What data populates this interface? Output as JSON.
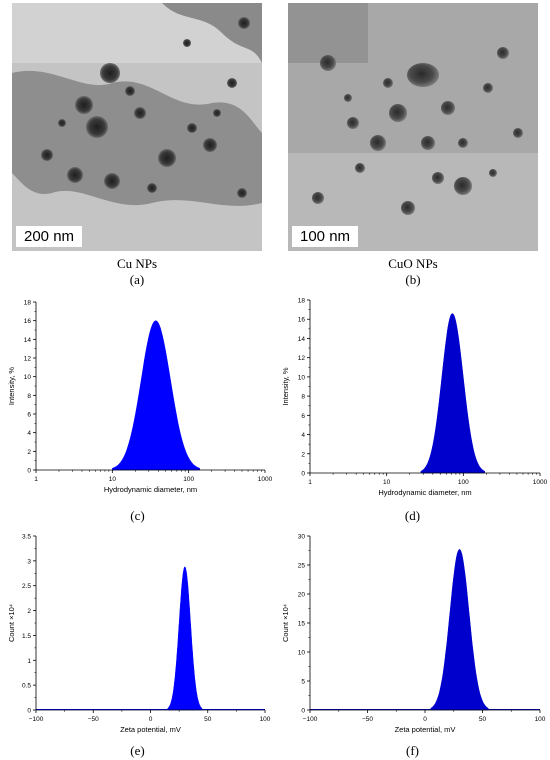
{
  "figure": {
    "panels": [
      {
        "letter": "(a)",
        "name": "Cu NPs",
        "scale_bar": "200 nm"
      },
      {
        "letter": "(b)",
        "name": "CuO NPs",
        "scale_bar": "100 nm"
      },
      {
        "letter": "(c)"
      },
      {
        "letter": "(d)"
      },
      {
        "letter": "(e)"
      },
      {
        "letter": "(f)"
      }
    ]
  },
  "chart_data": [
    {
      "id": "c",
      "type": "area",
      "xlabel": "Hydrodynamic diameter, nm",
      "ylabel": "Intensity, %",
      "xscale": "log",
      "xlim": [
        1,
        1000
      ],
      "ylim": [
        0,
        18
      ],
      "xticks": [
        "1",
        "10",
        "100",
        "1000"
      ],
      "yticks": [
        "0",
        "2",
        "4",
        "6",
        "8",
        "10",
        "12",
        "14",
        "16",
        "18"
      ],
      "peak_x": 37,
      "peak_y": 16.0,
      "range": [
        10,
        140
      ],
      "color": "#0000ff"
    },
    {
      "id": "d",
      "type": "area",
      "xlabel": "Hydrodynamic diameter, nm",
      "ylabel": "Intensity, %",
      "xscale": "log",
      "xlim": [
        1,
        1000
      ],
      "ylim": [
        0,
        18
      ],
      "xticks": [
        "1",
        "10",
        "100",
        "1000"
      ],
      "yticks": [
        "0",
        "2",
        "4",
        "6",
        "8",
        "10",
        "12",
        "14",
        "16",
        "18"
      ],
      "peak_x": 72,
      "peak_y": 16.6,
      "range": [
        28,
        190
      ],
      "color": "#0000cc"
    },
    {
      "id": "e",
      "type": "area",
      "xlabel": "Zeta potential, mV",
      "ylabel": "Count ×10⁴",
      "xscale": "linear",
      "xlim": [
        -100,
        100
      ],
      "ylim": [
        0,
        3.5
      ],
      "xticks": [
        "−100",
        "−50",
        "0",
        "50",
        "100"
      ],
      "yticks": [
        "0",
        "0.5",
        "1",
        "1.5",
        "2",
        "2.5",
        "3",
        "3.5"
      ],
      "peak_x": 30,
      "peak_y": 2.88,
      "range": [
        15,
        45
      ],
      "color": "#0000ff"
    },
    {
      "id": "f",
      "type": "area",
      "xlabel": "Zeta potential, mV",
      "ylabel": "Count ×10⁴",
      "xscale": "linear",
      "xlim": [
        -100,
        100
      ],
      "ylim": [
        0,
        30
      ],
      "xticks": [
        "−100",
        "−50",
        "0",
        "50",
        "100"
      ],
      "yticks": [
        "0",
        "5",
        "10",
        "15",
        "20",
        "25",
        "30"
      ],
      "peak_x": 30,
      "peak_y": 27.7,
      "range": [
        5,
        55
      ],
      "color": "#0000cc"
    }
  ]
}
